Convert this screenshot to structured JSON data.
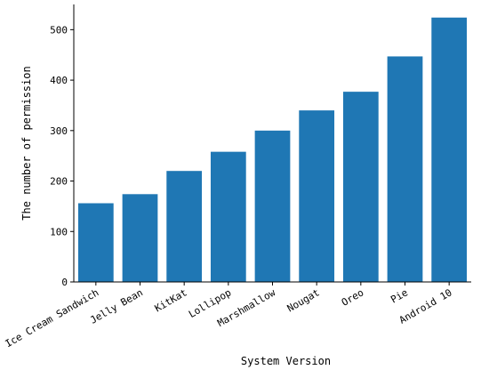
{
  "chart_data": {
    "type": "bar",
    "categories": [
      "Ice Cream Sandwich",
      "Jelly Bean",
      "KitKat",
      "Lollipop",
      "Marshmallow",
      "Nougat",
      "Oreo",
      "Pie",
      "Android 10"
    ],
    "values": [
      156,
      174,
      220,
      258,
      300,
      340,
      377,
      447,
      524
    ],
    "title": "",
    "xlabel": "System Version",
    "ylabel": "The number of permission",
    "ylim": [
      0,
      550
    ],
    "yticks": [
      0,
      100,
      200,
      300,
      400,
      500
    ],
    "grid": false,
    "legend": "none",
    "bar_color": "#1f77b4"
  }
}
